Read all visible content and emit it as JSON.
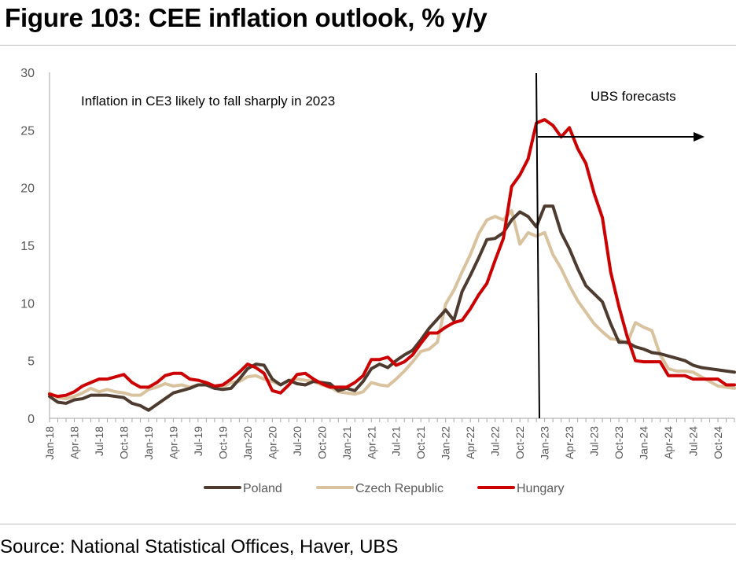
{
  "figure_title": "Figure 103: CEE inflation outlook, % y/y",
  "source": "Source: National Statistical Offices, Haver, UBS",
  "chart_data": {
    "type": "line",
    "title": "Figure 103: CEE inflation outlook, % y/y",
    "xlabel": "",
    "ylabel": "% y/y",
    "ylim": [
      0,
      30
    ],
    "yticks": [
      0,
      5,
      10,
      15,
      20,
      25,
      30
    ],
    "grid": false,
    "legend_position": "bottom",
    "x": [
      "Jan-18",
      "Feb-18",
      "Mar-18",
      "Apr-18",
      "May-18",
      "Jun-18",
      "Jul-18",
      "Aug-18",
      "Sep-18",
      "Oct-18",
      "Nov-18",
      "Dec-18",
      "Jan-19",
      "Feb-19",
      "Mar-19",
      "Apr-19",
      "May-19",
      "Jun-19",
      "Jul-19",
      "Aug-19",
      "Sep-19",
      "Oct-19",
      "Nov-19",
      "Dec-19",
      "Jan-20",
      "Feb-20",
      "Mar-20",
      "Apr-20",
      "May-20",
      "Jun-20",
      "Jul-20",
      "Aug-20",
      "Sep-20",
      "Oct-20",
      "Nov-20",
      "Dec-20",
      "Jan-21",
      "Feb-21",
      "Mar-21",
      "Apr-21",
      "May-21",
      "Jun-21",
      "Jul-21",
      "Aug-21",
      "Sep-21",
      "Oct-21",
      "Nov-21",
      "Dec-21",
      "Jan-22",
      "Feb-22",
      "Mar-22",
      "Apr-22",
      "May-22",
      "Jun-22",
      "Jul-22",
      "Aug-22",
      "Sep-22",
      "Oct-22",
      "Nov-22",
      "Dec-22",
      "Jan-23",
      "Feb-23",
      "Mar-23",
      "Apr-23",
      "May-23",
      "Jun-23",
      "Jul-23",
      "Aug-23",
      "Sep-23",
      "Oct-23",
      "Nov-23",
      "Dec-23",
      "Jan-24",
      "Feb-24",
      "Mar-24",
      "Apr-24",
      "May-24",
      "Jun-24",
      "Jul-24",
      "Aug-24",
      "Sep-24",
      "Oct-24",
      "Nov-24",
      "Dec-24"
    ],
    "x_tick_labels": [
      "Jan-18",
      "Apr-18",
      "Jul-18",
      "Oct-18",
      "Jan-19",
      "Apr-19",
      "Jul-19",
      "Oct-19",
      "Jan-20",
      "Apr-20",
      "Jul-20",
      "Oct-20",
      "Jan-21",
      "Apr-21",
      "Jul-21",
      "Oct-21",
      "Jan-22",
      "Apr-22",
      "Jul-22",
      "Oct-22",
      "Jan-23",
      "Apr-23",
      "Jul-23",
      "Oct-23",
      "Jan-24",
      "Apr-24",
      "Jul-24",
      "Oct-24"
    ],
    "series": [
      {
        "name": "Poland",
        "color": "#4d3b30",
        "values": [
          1.9,
          1.4,
          1.3,
          1.6,
          1.7,
          2.0,
          2.0,
          2.0,
          1.9,
          1.8,
          1.3,
          1.1,
          0.7,
          1.2,
          1.7,
          2.2,
          2.4,
          2.6,
          2.9,
          2.9,
          2.6,
          2.5,
          2.6,
          3.4,
          4.3,
          4.7,
          4.6,
          3.4,
          2.9,
          3.3,
          3.0,
          2.9,
          3.2,
          3.1,
          3.0,
          2.4,
          2.6,
          2.4,
          3.2,
          4.3,
          4.7,
          4.4,
          5.0,
          5.5,
          5.9,
          6.8,
          7.8,
          8.6,
          9.4,
          8.5,
          11.0,
          12.4,
          13.9,
          15.5,
          15.6,
          16.1,
          17.2,
          17.9,
          17.5,
          16.6,
          18.4,
          18.4,
          16.1,
          14.7,
          13.0,
          11.5,
          10.8,
          10.1,
          8.2,
          6.6,
          6.6,
          6.2,
          6.0,
          5.7,
          5.6,
          5.4,
          5.2,
          5.0,
          4.6,
          4.4,
          4.3,
          4.2,
          4.1,
          4.0
        ]
      },
      {
        "name": "Czech Republic",
        "color": "#d9c29e",
        "values": [
          2.2,
          1.8,
          1.7,
          1.9,
          2.2,
          2.6,
          2.3,
          2.5,
          2.3,
          2.2,
          2.0,
          2.0,
          2.5,
          2.7,
          3.0,
          2.8,
          2.9,
          2.7,
          2.9,
          2.9,
          2.7,
          2.7,
          3.1,
          3.2,
          3.6,
          3.7,
          3.4,
          3.2,
          2.9,
          3.3,
          3.4,
          3.3,
          3.2,
          2.9,
          2.7,
          2.3,
          2.2,
          2.1,
          2.3,
          3.1,
          2.9,
          2.8,
          3.4,
          4.1,
          4.9,
          5.8,
          6.0,
          6.6,
          9.9,
          11.1,
          12.7,
          14.2,
          16.0,
          17.2,
          17.5,
          17.2,
          18.0,
          15.1,
          16.1,
          15.8,
          16.1,
          14.2,
          13.0,
          11.5,
          10.2,
          9.2,
          8.2,
          7.5,
          6.9,
          6.8,
          6.5,
          8.3,
          7.9,
          7.6,
          5.5,
          4.3,
          4.1,
          4.1,
          4.0,
          3.6,
          3.2,
          2.8,
          2.7,
          2.6
        ]
      },
      {
        "name": "Hungary",
        "color": "#cc0000",
        "values": [
          2.1,
          1.9,
          2.0,
          2.3,
          2.8,
          3.1,
          3.4,
          3.4,
          3.6,
          3.8,
          3.1,
          2.7,
          2.7,
          3.1,
          3.7,
          3.9,
          3.9,
          3.4,
          3.3,
          3.1,
          2.8,
          2.9,
          3.4,
          4.0,
          4.7,
          4.4,
          3.9,
          2.4,
          2.2,
          2.9,
          3.8,
          3.9,
          3.4,
          3.0,
          2.7,
          2.7,
          2.7,
          3.1,
          3.7,
          5.1,
          5.1,
          5.3,
          4.6,
          4.9,
          5.5,
          6.5,
          7.4,
          7.4,
          7.9,
          8.3,
          8.5,
          9.5,
          10.7,
          11.7,
          13.7,
          15.6,
          20.1,
          21.1,
          22.5,
          25.6,
          25.9,
          25.4,
          24.4,
          25.2,
          23.4,
          22.1,
          19.5,
          17.4,
          12.7,
          9.7,
          7.1,
          5.0,
          4.9,
          4.9,
          4.9,
          3.7,
          3.7,
          3.7,
          3.4,
          3.4,
          3.4,
          3.4,
          2.9,
          2.9
        ]
      }
    ],
    "forecast_start": "Dec-22",
    "annotations": [
      "Inflation in CE3 likely to fall sharply in 2023",
      "UBS forecasts"
    ]
  }
}
